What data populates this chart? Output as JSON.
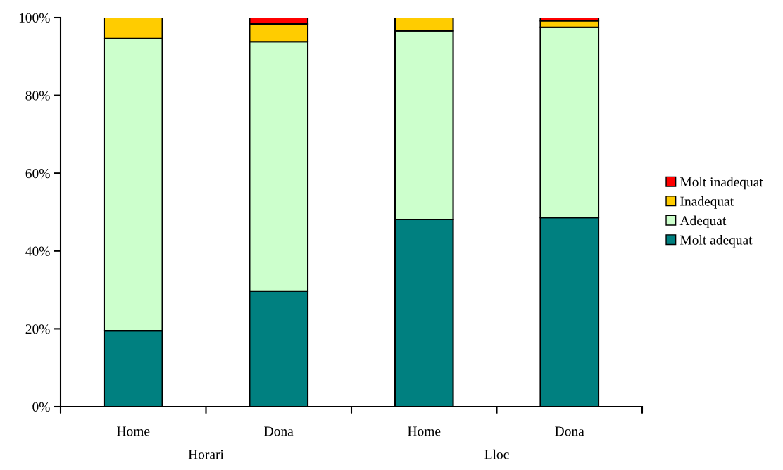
{
  "chart_data": {
    "type": "bar",
    "stacked": true,
    "categories": [
      "Home",
      "Dona",
      "Home",
      "Dona"
    ],
    "series": [
      {
        "name": "Molt adequat",
        "color": "#008080",
        "values": [
          19.5,
          29.7,
          48.1,
          48.6
        ]
      },
      {
        "name": "Adequat",
        "color": "#ccffcc",
        "values": [
          75.1,
          64.1,
          48.5,
          48.9
        ]
      },
      {
        "name": "Inadequat",
        "color": "#ffcc00",
        "values": [
          5.4,
          4.6,
          3.4,
          1.7
        ]
      },
      {
        "name": "Molt inadequat",
        "color": "#ff0000",
        "values": [
          null,
          1.6,
          null,
          0.8
        ]
      }
    ],
    "ylim": [
      0,
      100
    ],
    "yticks": [
      {
        "value": 0,
        "label": "0%"
      },
      {
        "value": 20,
        "label": "20%"
      },
      {
        "value": 40,
        "label": "40%"
      },
      {
        "value": 60,
        "label": "60%"
      },
      {
        "value": 80,
        "label": "80%"
      },
      {
        "value": 100,
        "label": "100%"
      }
    ],
    "annotations": [
      {
        "text": "Horari"
      },
      {
        "text": "Lloc"
      }
    ],
    "grid": false,
    "legend": "right"
  }
}
